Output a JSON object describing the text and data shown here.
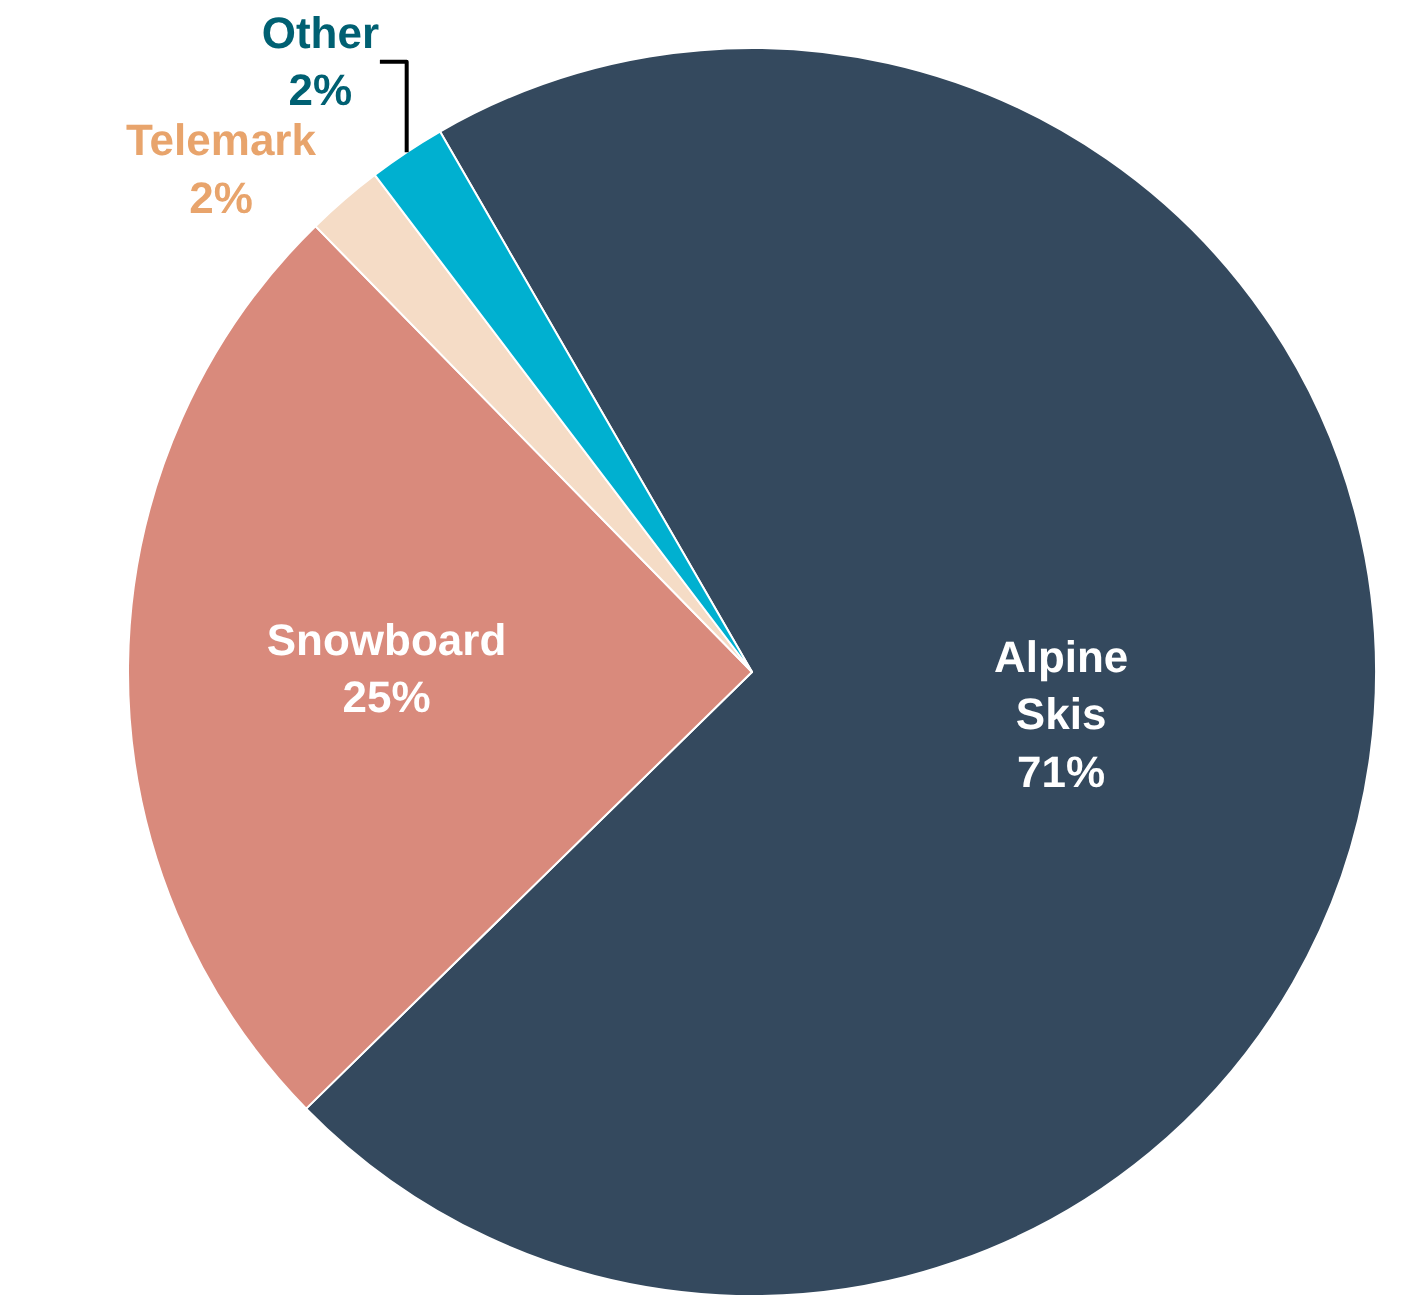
{
  "chart_data": {
    "type": "pie",
    "categories": [
      "Alpine Skis",
      "Snowboard",
      "Telemark",
      "Other"
    ],
    "values": [
      71,
      25,
      2,
      2
    ],
    "value_labels": [
      "71%",
      "25%",
      "2%",
      "2%"
    ],
    "colors": [
      "#34495e",
      "#d98a7c",
      "#f5dcc6",
      "#00b0d0"
    ],
    "legend": false
  }
}
